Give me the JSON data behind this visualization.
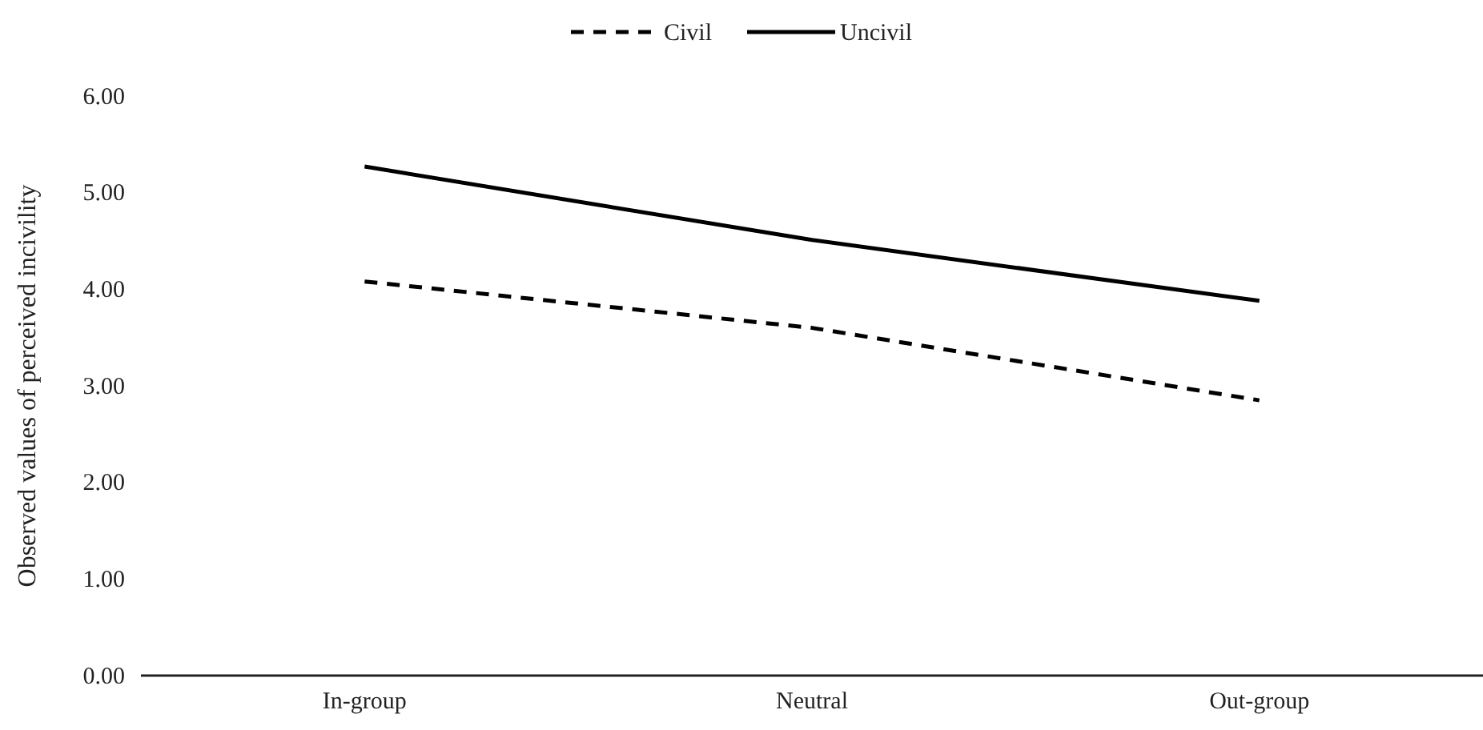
{
  "chart_data": {
    "type": "line",
    "ylabel": "Observed values of perceived incivility",
    "categories": [
      "In-group",
      "Neutral",
      "Out-group"
    ],
    "series": [
      {
        "name": "Civil",
        "color": "#000000",
        "line_style": "dashed",
        "values": [
          4.08,
          3.6,
          2.85
        ]
      },
      {
        "name": "Uncivil",
        "color": "#000000",
        "line_style": "solid",
        "values": [
          5.27,
          4.51,
          3.88
        ]
      }
    ],
    "ylim": [
      0,
      6
    ],
    "yticks": [
      {
        "value": 0,
        "label": "0.00"
      },
      {
        "value": 1,
        "label": "1.00"
      },
      {
        "value": 2,
        "label": "2.00"
      },
      {
        "value": 3,
        "label": "3.00"
      },
      {
        "value": 4,
        "label": "4.00"
      },
      {
        "value": 5,
        "label": "5.00"
      },
      {
        "value": 6,
        "label": "6.00"
      }
    ],
    "grid": false,
    "legend": "top",
    "marker": "none"
  }
}
